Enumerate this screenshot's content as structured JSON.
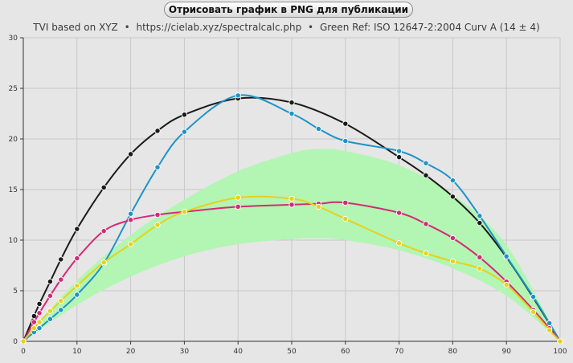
{
  "export_button": {
    "label": "Отрисовать график в PNG для публикации"
  },
  "subtitle": {
    "part1": "TVI based on XYZ",
    "part2": "https://cielab.xyz/spectralcalc.php",
    "part3": "Green Ref: ISO 12647-2:2004 Curv A (14 ± 4)",
    "separator": "•"
  },
  "colors": {
    "background": "#e6e6e6",
    "grid": "#c8c8c8",
    "band": "#b3f5b3",
    "black": "#1a1a1a",
    "blue": "#1e93c8",
    "magenta": "#d42a78",
    "yellow": "#e6d21a"
  },
  "chart_data": {
    "type": "line",
    "xlim": [
      0,
      100
    ],
    "ylim": [
      0,
      30
    ],
    "xticks": [
      0,
      10,
      20,
      30,
      40,
      50,
      60,
      70,
      80,
      90,
      100
    ],
    "yticks": [
      0,
      5,
      10,
      15,
      20,
      25,
      30
    ],
    "grid": true,
    "reference_band": {
      "x": [
        0,
        10,
        20,
        30,
        40,
        50,
        55,
        60,
        70,
        80,
        90,
        100
      ],
      "lower": [
        0,
        3.6,
        6.4,
        8.4,
        9.6,
        10.1,
        10.2,
        10.0,
        9.0,
        7.2,
        4.5,
        0
      ],
      "upper": [
        0,
        6.0,
        10.5,
        14.0,
        16.8,
        18.6,
        19.0,
        18.8,
        17.4,
        14.5,
        9.5,
        0
      ]
    },
    "series": [
      {
        "color": "#1a1a1a",
        "x": [
          0,
          2,
          3,
          5,
          7,
          10,
          15,
          20,
          25,
          30,
          40,
          50,
          60,
          70,
          75,
          80,
          85,
          90,
          95,
          100
        ],
        "y": [
          0,
          2.5,
          3.7,
          5.9,
          8.1,
          11.1,
          15.2,
          18.5,
          20.8,
          22.4,
          24.0,
          23.6,
          21.5,
          18.2,
          16.4,
          14.3,
          11.7,
          8.3,
          4.3,
          0
        ]
      },
      {
        "color": "#1e93c8",
        "x": [
          0,
          2,
          3,
          5,
          7,
          10,
          15,
          20,
          25,
          30,
          40,
          50,
          55,
          60,
          70,
          75,
          80,
          85,
          90,
          95,
          98,
          100
        ],
        "y": [
          0,
          0.9,
          1.3,
          2.2,
          3.1,
          4.6,
          7.7,
          12.6,
          17.2,
          20.7,
          24.3,
          22.5,
          21.0,
          19.8,
          18.8,
          17.6,
          15.9,
          12.4,
          8.4,
          4.4,
          1.8,
          0
        ]
      },
      {
        "color": "#d42a78",
        "x": [
          0,
          2,
          3,
          5,
          7,
          10,
          15,
          20,
          25,
          30,
          40,
          50,
          55,
          60,
          70,
          75,
          80,
          85,
          90,
          95,
          98,
          100
        ],
        "y": [
          0,
          1.9,
          2.8,
          4.5,
          6.1,
          8.2,
          10.9,
          12.0,
          12.5,
          12.8,
          13.3,
          13.5,
          13.6,
          13.7,
          12.7,
          11.6,
          10.2,
          8.3,
          5.9,
          3.1,
          1.3,
          0
        ]
      },
      {
        "color": "#e6d21a",
        "x": [
          0,
          2,
          3,
          5,
          7,
          10,
          15,
          20,
          25,
          30,
          40,
          50,
          55,
          60,
          70,
          75,
          80,
          85,
          90,
          95,
          98,
          100
        ],
        "y": [
          0,
          1.3,
          1.9,
          3.0,
          4.0,
          5.5,
          7.8,
          9.6,
          11.5,
          12.8,
          14.2,
          14.1,
          13.3,
          12.1,
          9.7,
          8.7,
          7.9,
          7.2,
          5.6,
          2.9,
          1.1,
          0
        ]
      }
    ]
  }
}
